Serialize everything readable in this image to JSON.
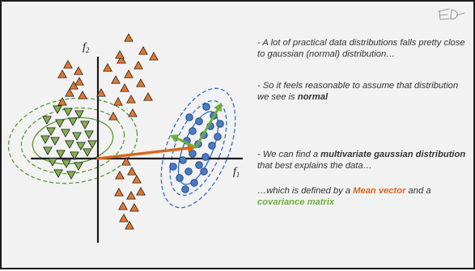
{
  "axes": {
    "x_label": "f",
    "x_subscript": "1",
    "y_label": "f",
    "y_subscript": "2"
  },
  "text": {
    "bullet1": "- A lot of practical data distributions falls pretty close to gaussian (normal) distribution…",
    "bullet2_prefix": "- So it feels reasonable to assume that distribution we see is ",
    "bullet2_emph": "normal",
    "bullet3_prefix": "- We can find a ",
    "bullet3_emph": "multivariate gaussian distribution",
    "bullet3_suffix": " that best explains the data…",
    "bullet4_prefix": "…which is defined by a ",
    "bullet4_mean": "Mean vector",
    "bullet4_mid": " and a ",
    "bullet4_cov": "covariance matrix"
  },
  "colors": {
    "slide_bg": "#f2f2f2",
    "axis": "#1a1a1a",
    "orange_points": "#e5762b",
    "green_points": "#82b04f",
    "blue_points": "#4a7ac4",
    "green_ellipse": "#5a9a35",
    "blue_ellipse": "#2f6fd0",
    "mean_vector": "#d9661a",
    "covariance": "#6fae3c"
  },
  "icons": {
    "signature": "signature-mark"
  }
}
